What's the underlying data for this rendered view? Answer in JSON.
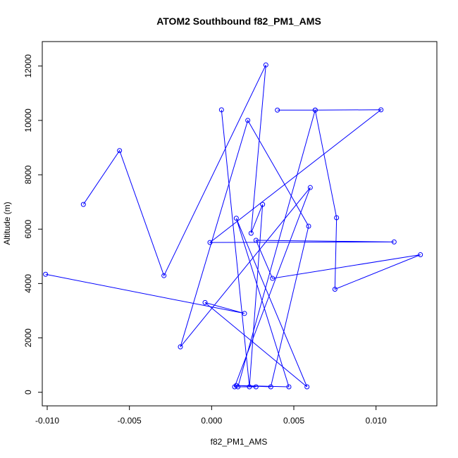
{
  "chart_data": {
    "type": "line",
    "title": "ATOM2 Southbound f82_PM1_AMS",
    "xlabel": "f82_PM1_AMS",
    "ylabel": "Altitude (m)",
    "xlim": [
      -0.0103,
      0.0137
    ],
    "ylim": [
      -500,
      12900
    ],
    "x_ticks": [
      -0.01,
      -0.005,
      0.0,
      0.005,
      0.01
    ],
    "x_tick_labels": [
      "-0.010",
      "-0.005",
      "0.000",
      "0.005",
      "0.010"
    ],
    "y_ticks": [
      0,
      2000,
      4000,
      6000,
      8000,
      10000,
      12000
    ],
    "y_tick_labels": [
      "0",
      "2000",
      "4000",
      "6000",
      "8000",
      "10000",
      "12000"
    ],
    "line_color": "#0000ff",
    "marker": "open-circle",
    "grid": false,
    "series": [
      {
        "x": [
          0.004,
          0.0063,
          0.0103,
          -0.0001,
          0.0111,
          0.0027,
          0.0037,
          0.0127,
          0.0075,
          0.0076,
          0.0063,
          0.0016,
          0.0027,
          0.0014,
          0.006,
          -0.0019,
          0.0022,
          0.0059,
          0.0036,
          0.0015,
          0.0047,
          0.0015,
          0.0058,
          -0.0004,
          0.002,
          -0.0101
        ],
        "y": [
          10380,
          10380,
          10390,
          5510,
          5530,
          5590,
          4190,
          5060,
          3790,
          6420,
          10380,
          200,
          200,
          200,
          7530,
          1670,
          10000,
          6110,
          200,
          250,
          200,
          6400,
          200,
          3300,
          2900,
          4340
        ]
      },
      {
        "x": [
          0.0006,
          0.0023,
          0.0031,
          0.0024,
          0.0033,
          -0.0029,
          -0.0056,
          -0.0078
        ],
        "y": [
          10390,
          200,
          6910,
          5850,
          12040,
          4290,
          8890,
          6910
        ]
      }
    ]
  }
}
